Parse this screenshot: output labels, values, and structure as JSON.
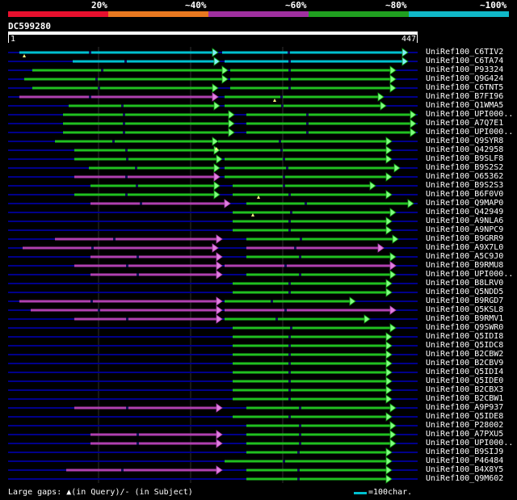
{
  "scale": {
    "labels": [
      "20%",
      "~40%",
      "~60%",
      "~80%",
      "~100%"
    ],
    "colors": [
      "#e8102e",
      "#e87820",
      "#a030a0",
      "#20a020",
      "#10b8c8"
    ]
  },
  "query": {
    "id": "DC599280",
    "start": "1",
    "end": "447"
  },
  "colors": {
    "hit_cyan": "#00c0d0",
    "hit_green": "#20c020",
    "hit_purple": "#b040b0",
    "arrow": "#80ff80",
    "track": "#00008b"
  },
  "hits": [
    "UniRef100_C6TIV2",
    "UniRef100_C6TA74",
    "UniRef100_P93324",
    "UniRef100_Q9G424",
    "UniRef100_C6TNT5",
    "UniRef100_B7FI96",
    "UniRef100_Q1WMA5",
    "UniRef100_UPI000..",
    "UniRef100_A7Q7E1",
    "UniRef100_UPI000..",
    "UniRef100_Q9SYR8",
    "UniRef100_Q42958",
    "UniRef100_B9SLF8",
    "UniRef100_B9S2S2",
    "UniRef100_O65362",
    "UniRef100_B9S2S3",
    "UniRef100_B6F0V0",
    "UniRef100_Q9MAP0",
    "UniRef100_Q42949",
    "UniRef100_A9NLA6",
    "UniRef100_A9NPC9",
    "UniRef100_B9GRR9",
    "UniRef100_A9X7L0",
    "UniRef100_A5C9J0",
    "UniRef100_B9RMU8",
    "UniRef100_UPI000..",
    "UniRef100_B8LRV0",
    "UniRef100_Q5NDD5",
    "UniRef100_B9RGD7",
    "UniRef100_Q5KSL8",
    "UniRef100_B9RMV1",
    "UniRef100_Q9SWR0",
    "UniRef100_Q5IDI8",
    "UniRef100_Q5IDC8",
    "UniRef100_B2CBW2",
    "UniRef100_B2CBV9",
    "UniRef100_Q5IDI4",
    "UniRef100_Q5IDE0",
    "UniRef100_B2CBX3",
    "UniRef100_B2CBW1",
    "UniRef100_A9P937",
    "UniRef100_Q5IDE8",
    "UniRef100_P28002",
    "UniRef100_A7PXU5",
    "UniRef100_UPI000..",
    "UniRef100_B9SIJ9",
    "UniRef100_P46484",
    "UniRef100_B4X8Y5",
    "UniRef100_Q9M602"
  ],
  "footer": {
    "gaps_text": "Large gaps: ▲(in Query)/- (in Subject)",
    "legend_text": "=100char."
  }
}
